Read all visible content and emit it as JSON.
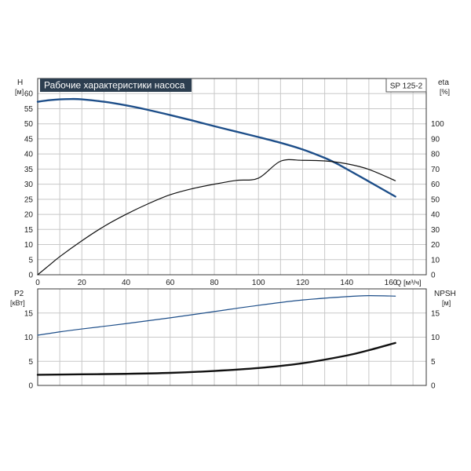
{
  "chart_data": [
    {
      "type": "line",
      "title": "Рабочие характеристики насоса",
      "badge": "SP 125-2",
      "x": {
        "label": "Q [м³/ч]",
        "range": [
          0,
          176
        ],
        "ticks": [
          0,
          20,
          40,
          60,
          80,
          100,
          120,
          140,
          160
        ]
      },
      "y_left": {
        "label": "H",
        "unit": "[м]",
        "range": [
          0,
          65
        ],
        "ticks": [
          0,
          5,
          10,
          15,
          20,
          25,
          30,
          35,
          40,
          45,
          50,
          55,
          60
        ]
      },
      "y_right": {
        "label": "eta",
        "unit": "[%]",
        "range": [
          0,
          130
        ],
        "ticks": [
          0,
          10,
          20,
          30,
          40,
          50,
          60,
          70,
          80,
          90,
          100
        ]
      },
      "grid": true,
      "series": [
        {
          "axis": "left",
          "color": "#1d4e89",
          "width": 2.4,
          "points": [
            [
              0,
              57.3
            ],
            [
              5,
              57.8
            ],
            [
              10,
              58.1
            ],
            [
              15,
              58.2
            ],
            [
              20,
              58.1
            ],
            [
              30,
              57.3
            ],
            [
              40,
              56.1
            ],
            [
              50,
              54.6
            ],
            [
              60,
              52.9
            ],
            [
              70,
              51.1
            ],
            [
              80,
              49.2
            ],
            [
              90,
              47.4
            ],
            [
              100,
              45.6
            ],
            [
              110,
              43.7
            ],
            [
              120,
              41.5
            ],
            [
              130,
              38.7
            ],
            [
              135,
              37.0
            ],
            [
              140,
              35.0
            ],
            [
              150,
              30.9
            ],
            [
              162,
              25.9
            ]
          ]
        },
        {
          "axis": "right",
          "color": "#111111",
          "width": 1.2,
          "points": [
            [
              0,
              0
            ],
            [
              5,
              6
            ],
            [
              10,
              12
            ],
            [
              20,
              22.5
            ],
            [
              30,
              32
            ],
            [
              40,
              40
            ],
            [
              50,
              47
            ],
            [
              60,
              53
            ],
            [
              70,
              57
            ],
            [
              80,
              60
            ],
            [
              90,
              62.5
            ],
            [
              100,
              64
            ],
            [
              110,
              75.2
            ],
            [
              120,
              75.8
            ],
            [
              130,
              75.4
            ],
            [
              140,
              73.5
            ],
            [
              150,
              69.8
            ],
            [
              162,
              62.3
            ]
          ]
        }
      ]
    },
    {
      "type": "line",
      "x": {
        "range": [
          0,
          176
        ],
        "ticks": [
          0,
          20,
          40,
          60,
          80,
          100,
          120,
          140,
          160
        ]
      },
      "y_left": {
        "label": "P2",
        "unit": "[кВт]",
        "range": [
          0,
          20
        ],
        "ticks": [
          0,
          5,
          10,
          15
        ]
      },
      "y_right": {
        "label": "NPSH",
        "unit": "[м]",
        "range": [
          0,
          20
        ],
        "ticks": [
          0,
          5,
          10,
          15
        ]
      },
      "grid": true,
      "series": [
        {
          "axis": "left",
          "color": "#1d4e89",
          "width": 1.2,
          "points": [
            [
              0,
              10.4
            ],
            [
              10,
              11.1
            ],
            [
              20,
              11.7
            ],
            [
              40,
              12.8
            ],
            [
              60,
              14.0
            ],
            [
              80,
              15.3
            ],
            [
              100,
              16.6
            ],
            [
              120,
              17.7
            ],
            [
              140,
              18.4
            ],
            [
              150,
              18.6
            ],
            [
              162,
              18.5
            ]
          ]
        },
        {
          "axis": "right",
          "color": "#111111",
          "width": 2.4,
          "points": [
            [
              0,
              2.2
            ],
            [
              20,
              2.3
            ],
            [
              40,
              2.4
            ],
            [
              60,
              2.6
            ],
            [
              80,
              3.0
            ],
            [
              100,
              3.6
            ],
            [
              120,
              4.6
            ],
            [
              140,
              6.2
            ],
            [
              150,
              7.3
            ],
            [
              162,
              8.8
            ]
          ]
        }
      ]
    }
  ]
}
